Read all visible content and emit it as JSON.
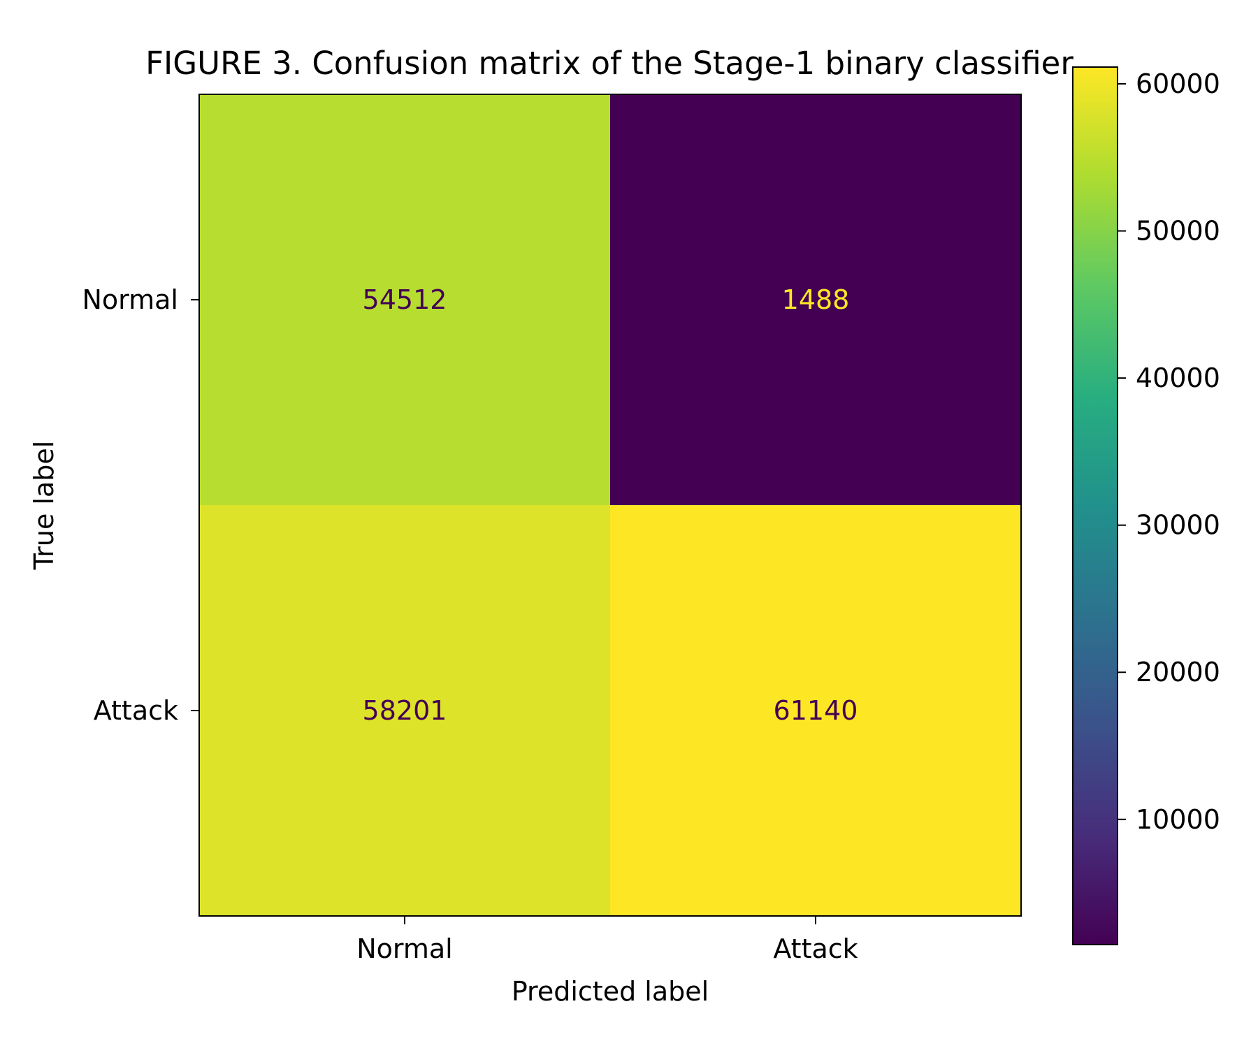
{
  "chart_data": {
    "type": "heatmap",
    "title": "FIGURE 3. Confusion matrix of the Stage-1 binary classifier",
    "xlabel": "Predicted label",
    "ylabel": "True label",
    "x_categories": [
      "Normal",
      "Attack"
    ],
    "y_categories": [
      "Normal",
      "Attack"
    ],
    "values": [
      [
        54512,
        1488
      ],
      [
        58201,
        61140
      ]
    ],
    "colormap": "viridis",
    "colorbar": {
      "range": [
        1488,
        61140
      ],
      "ticks": [
        10000,
        20000,
        30000,
        40000,
        50000,
        60000
      ],
      "tick_labels": [
        "10000",
        "20000",
        "30000",
        "40000",
        "50000",
        "60000"
      ]
    },
    "annotation_colors": {
      "dark": "#440154",
      "light": "#fde725"
    },
    "grid": false
  }
}
